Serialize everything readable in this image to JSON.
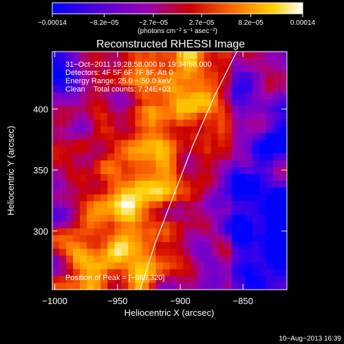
{
  "chart_data": {
    "type": "heatmap",
    "title": "Reconstructed RHESSI Image",
    "xlabel": "Heliocentric X (arcsec)",
    "ylabel": "Heliocentric Y (arcsec)",
    "xlim": [
      -1002,
      -815
    ],
    "ylim": [
      252,
      447
    ],
    "xticks": [
      -1000,
      -950,
      -900,
      -850
    ],
    "xtick_labels": [
      "−1000",
      "−950",
      "−900",
      "−850"
    ],
    "yticks": [
      300,
      350,
      400
    ],
    "ytick_labels": [
      "300",
      "350",
      "400"
    ],
    "colorbar": {
      "range": [
        -0.00014,
        0.00014
      ],
      "ticks": [
        -0.00014,
        -8.2e-05,
        -2.7e-05,
        2.7e-05,
        8.2e-05,
        0.00014
      ],
      "tick_labels": [
        "−0.00014",
        "−8.2e−05",
        "−2.7e−05",
        "2.7e−05",
        "8.2e−05",
        "0.00014"
      ],
      "unit_label": "(photons cm⁻² s⁻¹ asec⁻²)",
      "colors": [
        "#0000ff",
        "#5a00d8",
        "#9a00b0",
        "#cc0000",
        "#ff6a00",
        "#ffd000",
        "#ffffff"
      ]
    },
    "peak": {
      "x": -988,
      "y": 320
    },
    "annotations": {
      "time": "31−Oct−2011 19:28:58.000 to 19:34:58.000",
      "detectors": "Detectors: 4F 5F 6F 7F 8F, Att 0",
      "energy": "Energy Range: 25.0 − 50.0 keV",
      "clean": "Clean    Total counts: 7.24E+03",
      "peak_text": "Position of Peak = [−988,320]"
    },
    "limb_points": [
      [
        -932,
        252
      ],
      [
        -920,
        290
      ],
      [
        -905,
        330
      ],
      [
        -890,
        370
      ],
      [
        -873,
        410
      ],
      [
        -855,
        447
      ]
    ],
    "grid": false
  },
  "footer": {
    "timestamp": "10−Aug−2013 16:39"
  }
}
